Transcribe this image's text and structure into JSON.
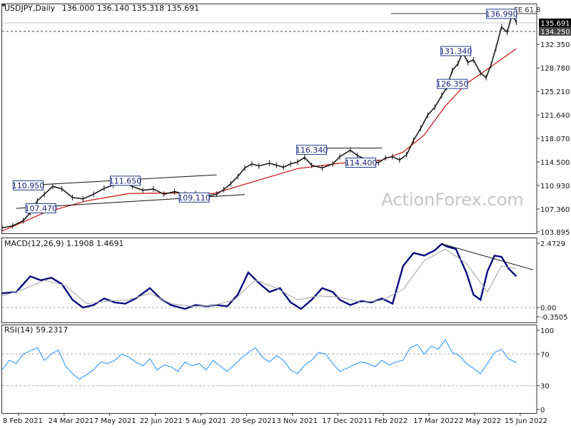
{
  "chart_data": [
    {
      "panel": "price",
      "type": "line",
      "title": "USDJPY,Daily",
      "ohlc_header": "136.000 136.140 135.318 135.691",
      "ylim": [
        103.895,
        136.6
      ],
      "y_ticks": [
        "135.691",
        "134.250",
        "132.350",
        "128.780",
        "125.210",
        "121.640",
        "118.070",
        "114.500",
        "110.930",
        "107.360",
        "103.895"
      ],
      "x_labels": [
        "8 Feb 2021",
        "24 Mar 2021",
        "7 May 2021",
        "22 Jun 2021",
        "5 Aug 2021",
        "20 Sep 2021",
        "3 Nov 2021",
        "17 Dec 2021",
        "1 Feb 2022",
        "17 Mar 2022",
        "2 May 2022",
        "15 Jun 2022"
      ],
      "current_price": 135.691,
      "support_level": 134.25,
      "fe_level_label": "FE 61.8",
      "fe_level": 138.0,
      "series": [
        {
          "name": "USDJPY",
          "x": [
            0,
            15,
            30,
            40,
            50,
            60,
            72,
            85,
            100,
            115,
            130,
            145,
            158,
            170,
            185,
            200,
            215,
            230,
            245,
            260,
            275,
            290,
            305,
            315,
            325,
            335,
            345,
            355,
            365,
            380,
            390,
            400,
            410,
            420,
            430,
            440,
            455,
            470,
            480,
            495,
            505,
            520,
            535,
            545,
            555,
            565,
            575,
            585,
            595,
            605,
            615,
            625,
            632,
            640,
            648,
            655,
            662,
            670,
            680,
            688,
            695,
            702,
            710,
            718,
            725,
            731
          ],
          "values": [
            104.5,
            104.8,
            105.6,
            106.8,
            108.6,
            109.6,
            110.8,
            110.4,
            109.1,
            108.9,
            109.6,
            110.5,
            111.0,
            111.4,
            110.8,
            110.2,
            110.4,
            109.6,
            110.0,
            109.6,
            109.7,
            109.3,
            109.6,
            110.3,
            111.2,
            112.3,
            113.6,
            114.2,
            113.9,
            114.3,
            114.0,
            113.7,
            114.2,
            114.5,
            115.2,
            114.0,
            113.6,
            114.2,
            115.3,
            116.3,
            115.5,
            114.7,
            114.4,
            115.1,
            115.3,
            114.8,
            115.6,
            117.8,
            119.6,
            121.6,
            122.8,
            124.6,
            125.8,
            128.4,
            129.4,
            131.2,
            129.6,
            130.0,
            128.0,
            127.3,
            129.2,
            131.8,
            135.0,
            134.2,
            136.9,
            135.7
          ]
        },
        {
          "name": "",
          "type": "moving-average",
          "color": "#cc1111",
          "x": [
            0,
            60,
            120,
            180,
            240,
            300,
            360,
            420,
            480,
            540,
            570,
            600,
            630,
            660,
            690,
            731
          ],
          "values": [
            104.0,
            106.8,
            108.6,
            109.7,
            109.8,
            109.7,
            111.6,
            113.5,
            114.3,
            114.8,
            116.0,
            118.6,
            123.0,
            126.4,
            128.6,
            131.7
          ]
        }
      ],
      "annotations": [
        {
          "label": "110.950",
          "x": 37,
          "value": 110.95
        },
        {
          "label": "107.470",
          "x": 55,
          "value": 107.47
        },
        {
          "label": "111.650",
          "x": 175,
          "value": 111.65
        },
        {
          "label": "109.110",
          "x": 273,
          "value": 109.11
        },
        {
          "label": "116.340",
          "x": 440,
          "value": 116.34
        },
        {
          "label": "114.400",
          "x": 510,
          "value": 114.4
        },
        {
          "label": "131.340",
          "x": 645,
          "value": 131.34
        },
        {
          "label": "126.350",
          "x": 640,
          "value": 126.35
        },
        {
          "label": "136.990",
          "x": 710,
          "value": 136.99
        }
      ],
      "trendlines": [
        {
          "x": [
            20,
            305
          ],
          "values": [
            110.85,
            112.55
          ]
        },
        {
          "x": [
            20,
            345
          ],
          "values": [
            107.45,
            109.55
          ]
        },
        {
          "x": [
            440,
            540
          ],
          "values": [
            116.6,
            116.6
          ]
        }
      ],
      "colors": {
        "price": "#1a1a1a",
        "box_border": "#1f3c88",
        "grid": "#c9c9c9"
      }
    },
    {
      "panel": "macd",
      "type": "line",
      "header": "MACD(12,26,9) 1.1908 1.4691",
      "ylim": [
        -0.3505,
        2.4729
      ],
      "y_ticks": [
        "2.4729",
        "0.00",
        "-0.3505"
      ],
      "series": [
        {
          "name": "MACD",
          "color": "#0a0a80",
          "x": [
            0,
            20,
            40,
            55,
            70,
            85,
            100,
            115,
            130,
            145,
            160,
            175,
            190,
            210,
            225,
            240,
            260,
            275,
            290,
            305,
            320,
            335,
            350,
            365,
            380,
            395,
            410,
            425,
            440,
            455,
            470,
            480,
            495,
            510,
            525,
            540,
            555,
            570,
            585,
            600,
            615,
            625,
            632,
            645,
            660,
            670,
            680,
            690,
            700,
            710,
            720,
            731
          ],
          "values": [
            0.55,
            0.6,
            1.2,
            1.05,
            1.15,
            0.9,
            0.3,
            0.0,
            0.1,
            0.35,
            0.2,
            0.15,
            0.35,
            0.75,
            0.35,
            0.1,
            -0.05,
            0.1,
            0.05,
            0.1,
            0.05,
            0.5,
            1.35,
            0.95,
            0.6,
            0.75,
            0.2,
            -0.05,
            0.3,
            0.75,
            0.6,
            0.3,
            0.1,
            0.25,
            0.2,
            0.35,
            0.15,
            1.6,
            2.1,
            2.0,
            2.2,
            2.45,
            2.35,
            2.25,
            1.35,
            0.5,
            0.3,
            1.4,
            2.0,
            1.95,
            1.5,
            1.2
          ]
        },
        {
          "name": "Signal",
          "color": "#a8a8a8",
          "x": [
            0,
            30,
            60,
            90,
            120,
            150,
            180,
            210,
            240,
            270,
            300,
            330,
            360,
            390,
            420,
            450,
            480,
            510,
            540,
            570,
            600,
            630,
            660,
            690,
            710,
            731
          ],
          "values": [
            0.45,
            0.7,
            1.05,
            0.85,
            0.15,
            0.25,
            0.3,
            0.55,
            0.15,
            0.05,
            0.08,
            0.3,
            1.05,
            0.75,
            0.3,
            0.45,
            0.4,
            0.2,
            0.28,
            0.7,
            1.8,
            2.25,
            1.7,
            0.6,
            1.6,
            1.5
          ]
        }
      ],
      "trendlines": [
        {
          "x": [
            625,
            755
          ],
          "values": [
            2.45,
            1.45
          ]
        }
      ]
    },
    {
      "panel": "rsi",
      "type": "line",
      "header": "RSI(14) 59.2317",
      "ylim": [
        0,
        100
      ],
      "y_ticks": [
        "100",
        "70",
        "30",
        "0"
      ],
      "levels": [
        70,
        30
      ],
      "series": [
        {
          "name": "RSI",
          "color": "#1e90ff",
          "x": [
            0,
            10,
            20,
            30,
            40,
            50,
            60,
            70,
            80,
            90,
            100,
            110,
            120,
            130,
            140,
            150,
            160,
            170,
            180,
            190,
            200,
            210,
            220,
            230,
            240,
            250,
            260,
            270,
            280,
            290,
            300,
            310,
            320,
            330,
            340,
            350,
            360,
            370,
            380,
            390,
            400,
            410,
            420,
            430,
            440,
            450,
            460,
            470,
            480,
            490,
            500,
            510,
            520,
            530,
            540,
            550,
            560,
            570,
            580,
            590,
            600,
            610,
            620,
            630,
            640,
            650,
            660,
            670,
            680,
            690,
            700,
            710,
            720,
            731
          ],
          "values": [
            50,
            62,
            58,
            70,
            74,
            78,
            62,
            70,
            75,
            55,
            45,
            38,
            44,
            50,
            60,
            58,
            62,
            70,
            66,
            60,
            55,
            64,
            50,
            56,
            54,
            48,
            60,
            55,
            58,
            50,
            62,
            55,
            48,
            56,
            65,
            72,
            78,
            66,
            60,
            68,
            62,
            50,
            45,
            56,
            62,
            72,
            70,
            58,
            48,
            52,
            56,
            60,
            58,
            54,
            62,
            56,
            60,
            62,
            78,
            82,
            70,
            80,
            76,
            88,
            72,
            68,
            58,
            52,
            45,
            58,
            72,
            76,
            64,
            59
          ]
        }
      ]
    }
  ],
  "watermark": "ActionForex.com"
}
